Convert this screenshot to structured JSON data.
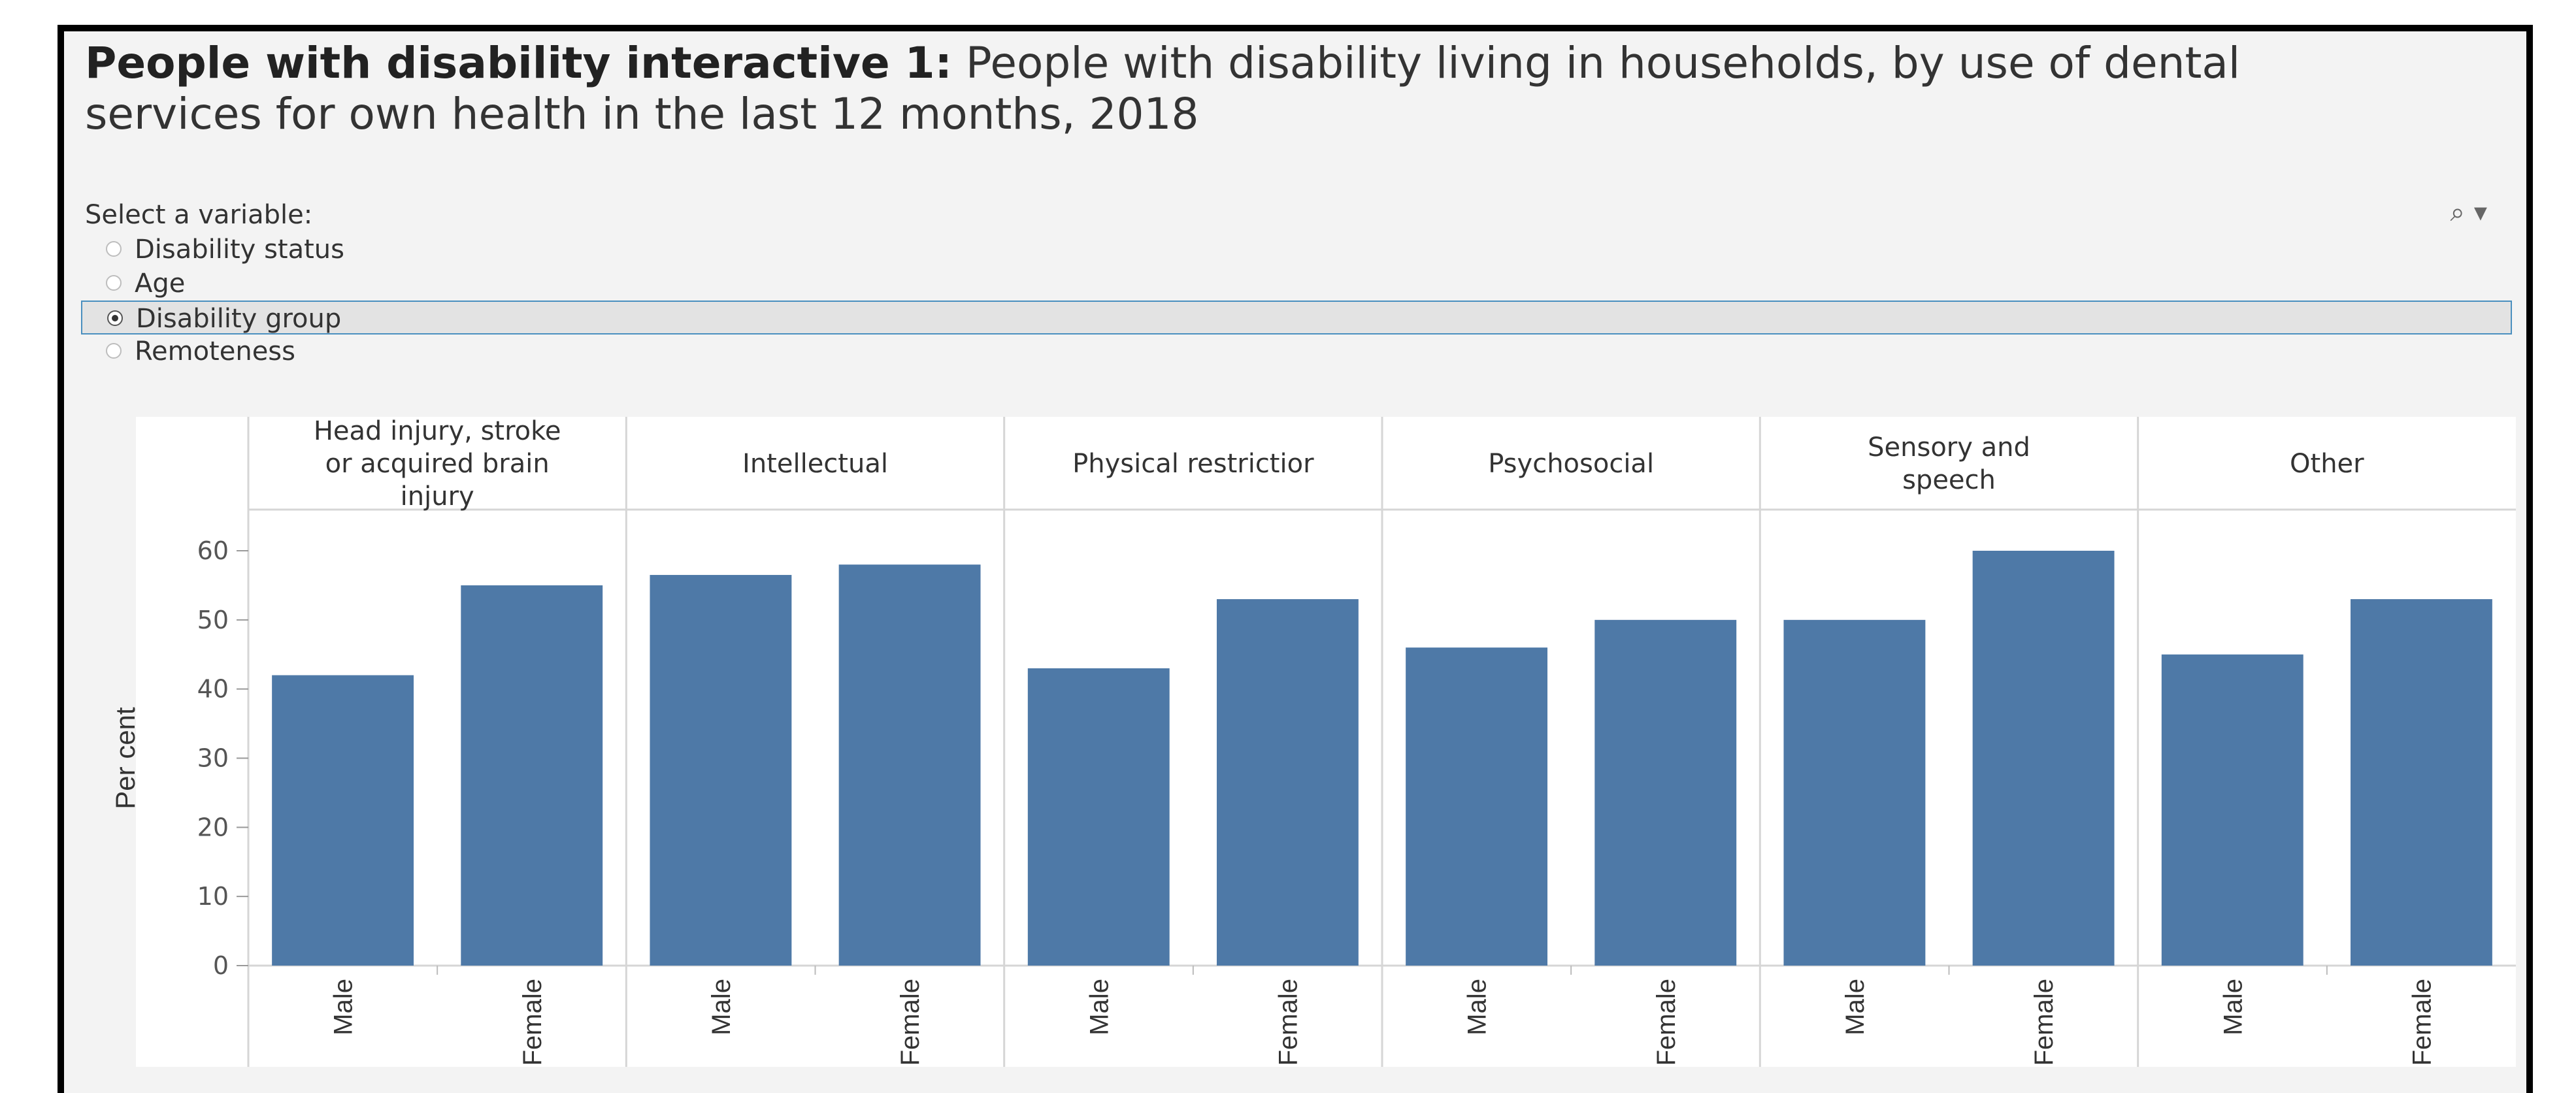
{
  "title": {
    "lead": "People with disability interactive 1:",
    "rest": " People with disability living in households, by use of dental services for own health in the last 12 months, 2018"
  },
  "selector": {
    "label": "Select a variable:",
    "options": [
      "Disability status",
      "Age",
      "Disability group",
      "Remoteness"
    ],
    "selected": "Disability group"
  },
  "toolbar": {
    "search_icon": "search-icon",
    "dropdown_icon": "caret-down-icon"
  },
  "colors": {
    "bar": "#4e79a7",
    "selected_border": "#4a8fbf"
  },
  "chart_data": {
    "type": "bar",
    "ylabel": "Per cent",
    "ylim": [
      0,
      60
    ],
    "yticks": [
      0,
      10,
      20,
      30,
      40,
      50,
      60
    ],
    "grid": false,
    "panels": [
      {
        "label": "Head injury, stroke or acquired brain injury",
        "label_lines": [
          "Head injury, stroke",
          "or acquired brain",
          "injury"
        ]
      },
      {
        "label": "Intellectual",
        "label_lines": [
          "Intellectual"
        ]
      },
      {
        "label": "Physical restriction",
        "label_lines": [
          "Physical restrictior"
        ]
      },
      {
        "label": "Psychosocial",
        "label_lines": [
          "Psychosocial"
        ]
      },
      {
        "label": "Sensory and speech",
        "label_lines": [
          "Sensory and",
          "speech"
        ]
      },
      {
        "label": "Other",
        "label_lines": [
          "Other"
        ]
      }
    ],
    "categories": [
      "Male",
      "Female"
    ],
    "values": [
      [
        42,
        55
      ],
      [
        56.5,
        58
      ],
      [
        43,
        53
      ],
      [
        46,
        50
      ],
      [
        50,
        60
      ],
      [
        45,
        53
      ]
    ]
  }
}
